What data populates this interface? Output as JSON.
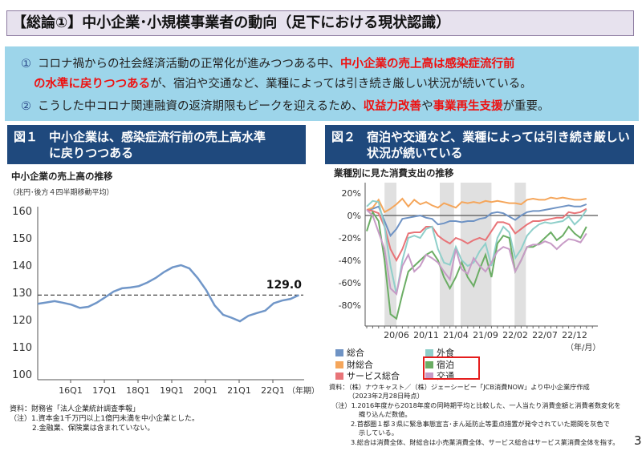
{
  "title": "【総論①】中小企業･小規模事業者の動向（足下における現状認識）",
  "summary": {
    "item1": {
      "num": "①",
      "text_a": "コロナ禍からの社会経済活動の正常化が進みつつある中、",
      "red_a": "中小企業の売上高は感染症流行前",
      "red_b": "の水準に戻りつつある",
      "text_b": "が、宿泊や交通など、業種によっては引き続き厳しい状況が続いている。"
    },
    "item2": {
      "num": "②",
      "text_a": "こうした中コロナ関連融資の返済期限もピークを迎えるため、",
      "red_a": "収益力改善",
      "text_b": "や",
      "red_b": "事業再生支援",
      "text_c": "が重要。"
    }
  },
  "fig1": {
    "label": "図１",
    "title_l1": "中小企業は、感染症流行前の売上高水準",
    "title_l2": "に戻りつつある",
    "chart_title": "中小企業の売上高の推移",
    "unit": "（兆円･後方４四半期移動平均）",
    "source": "資料：財務省「法人企業統計調査季報」",
    "note1": "（注）1.資本金1千万円以上1億円未満を中小企業とした。",
    "note2": "2.金融業、保険業は含まれていない。"
  },
  "fig2": {
    "label": "図２",
    "title_l1": "宿泊や交通など、業種によっては引き続き厳しい",
    "title_l2": "状況が続いている",
    "chart_title": "業種別に見た消費支出の推移",
    "source": "資料：（株）ナウキャスト／（株）ジェーシービー「JCB消費NOW」より中小企業庁作成",
    "source2": "（2023年2月28日時点）",
    "note1a": "（注）1.2016年度から2018年度の同時期平均と比較した、一人当たり消費金額と消費者数変化を",
    "note1b": "織り込んだ数値。",
    "note2a": "2.首都圏１都３県に緊急事態宣言･まん延防止等重点措置が発令されていた期間を灰色で",
    "note2b": "示している。",
    "note3": "3.総合は消費全体、財総合は小売業消費全体、サービス総合はサービス業消費全体を指す。"
  },
  "page_number": "3",
  "chart_data": [
    {
      "type": "line",
      "title": "中小企業の売上高の推移",
      "ylabel": "兆円",
      "xlabel": "（年期）",
      "ylim": [
        100,
        160
      ],
      "yticks": [
        "100",
        "110",
        "120",
        "130",
        "140",
        "150",
        "160"
      ],
      "xticks": [
        "16Q1",
        "17Q1",
        "18Q1",
        "19Q1",
        "20Q1",
        "21Q1",
        "22Q1"
      ],
      "x_start": "15Q1",
      "x_end": "22Q4",
      "values": [
        125.8,
        126.3,
        126.8,
        126.2,
        125.5,
        124.3,
        124.7,
        126.2,
        128.2,
        130.3,
        131.5,
        131.8,
        132.3,
        133.6,
        135.3,
        137.5,
        139.2,
        140.0,
        138.8,
        135.2,
        130.8,
        125.2,
        121.8,
        120.7,
        119.4,
        121.4,
        122.4,
        123.3,
        126.0,
        127.0,
        127.6,
        129.0
      ],
      "reference_line": 129.0,
      "annotation": "129.0",
      "color": "#7096c8"
    },
    {
      "type": "line",
      "title": "業種別に見た消費支出の推移",
      "xlabel": "（年/月）",
      "ylim": [
        -100,
        28
      ],
      "yticks": [
        "20%",
        "0%",
        "-20%",
        "-40%",
        "-60%",
        "-80%"
      ],
      "ytick_values": [
        20,
        0,
        -20,
        -40,
        -60,
        -80
      ],
      "xticks": [
        "20/06",
        "20/11",
        "21/04",
        "21/09",
        "22/02",
        "22/07",
        "22/12"
      ],
      "x_start": "2020/01",
      "x_end": "2023/02",
      "shaded_periods_month_index": [
        [
          3,
          5
        ],
        [
          12.3,
          14.7
        ],
        [
          15.8,
          21
        ],
        [
          24.9,
          26.8
        ]
      ],
      "series": [
        {
          "name": "総合",
          "color": "#6f93c4",
          "values": [
            5,
            6,
            8,
            -5,
            -18,
            -12,
            -3,
            -2,
            -1,
            0,
            -2,
            -3,
            -8,
            -7,
            -5,
            -5,
            -6,
            -5,
            -5,
            -3,
            -2,
            2,
            3,
            2,
            -1,
            -4,
            0,
            3,
            4,
            4,
            5,
            6,
            7,
            8,
            9,
            8,
            8,
            10
          ]
        },
        {
          "name": "財総合",
          "color": "#f5a65b",
          "values": [
            5,
            7,
            14,
            3,
            6,
            10,
            15,
            8,
            14,
            10,
            12,
            9,
            7,
            11,
            9,
            7,
            12,
            11,
            12,
            11,
            13,
            12,
            13,
            12,
            11,
            11,
            10,
            14,
            15,
            14,
            14,
            16,
            15,
            16,
            15,
            14,
            14,
            15
          ]
        },
        {
          "name": "サービス総合",
          "color": "#e87478",
          "values": [
            5,
            4,
            2,
            -10,
            -30,
            -40,
            -30,
            -16,
            -15,
            -15,
            -10,
            -10,
            -18,
            -22,
            -25,
            -20,
            -22,
            -25,
            -22,
            -20,
            -22,
            -14,
            -6,
            -6,
            -8,
            -16,
            -12,
            -8,
            -5,
            -5,
            -4,
            -3,
            -2,
            -2,
            3,
            2,
            3,
            6
          ]
        },
        {
          "name": "外食",
          "color": "#8fcfca",
          "values": [
            8,
            13,
            12,
            -10,
            -45,
            -70,
            -40,
            -20,
            -18,
            -20,
            -12,
            -10,
            -30,
            -42,
            -44,
            -28,
            -40,
            -45,
            -42,
            -32,
            -25,
            -45,
            -20,
            -10,
            -15,
            -38,
            -30,
            -18,
            -12,
            -8,
            -6,
            -7,
            -6,
            -5,
            -1,
            -8,
            -3,
            5
          ]
        },
        {
          "name": "宿泊",
          "color": "#6bad64",
          "values": [
            -14,
            3,
            -5,
            -40,
            -88,
            -92,
            -70,
            -50,
            -45,
            -40,
            -35,
            -32,
            -40,
            -55,
            -65,
            -55,
            -42,
            -55,
            -63,
            -48,
            -35,
            -55,
            -25,
            -18,
            -20,
            -50,
            -40,
            -28,
            -28,
            -25,
            -20,
            -15,
            -22,
            -18,
            -10,
            -16,
            -20,
            -10
          ]
        },
        {
          "name": "交通",
          "color": "#c79bc6",
          "values": [
            5,
            0,
            -15,
            -30,
            -65,
            -70,
            -45,
            -35,
            -50,
            -45,
            -35,
            -38,
            -42,
            -50,
            -57,
            -30,
            -48,
            -52,
            -38,
            -45,
            -50,
            -42,
            -32,
            -28,
            -30,
            -50,
            -40,
            -28,
            -26,
            -26,
            -23,
            -25,
            -30,
            -25,
            -21,
            -22,
            -24,
            -16
          ]
        }
      ],
      "highlighted_legend": [
        "宿泊",
        "交通"
      ]
    }
  ]
}
